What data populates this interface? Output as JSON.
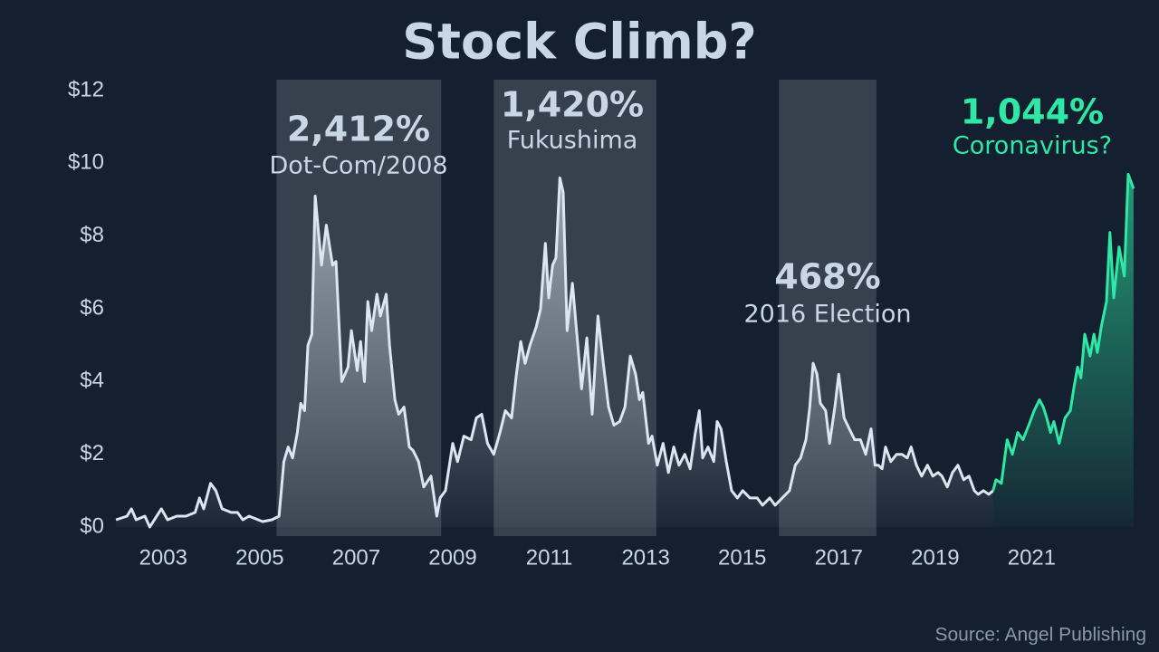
{
  "chart_data": {
    "type": "line",
    "title": "Stock Climb?",
    "source": "Source: Angel Publishing",
    "xlim": [
      2002,
      2023.15
    ],
    "ylim": [
      0,
      12
    ],
    "xticks": [
      2003,
      2005,
      2007,
      2009,
      2011,
      2013,
      2015,
      2017,
      2019,
      2021
    ],
    "yticks": [
      {
        "value": 0,
        "label": "$0"
      },
      {
        "value": 2,
        "label": "$2"
      },
      {
        "value": 4,
        "label": "$4"
      },
      {
        "value": 6,
        "label": "$6"
      },
      {
        "value": 8,
        "label": "$8"
      },
      {
        "value": 10,
        "label": "$10"
      },
      {
        "value": 12,
        "label": "$12"
      }
    ],
    "highlights": [
      {
        "start": 2005.35,
        "end": 2008.76
      },
      {
        "start": 2009.85,
        "end": 2013.22
      },
      {
        "start": 2015.76,
        "end": 2017.78
      }
    ],
    "annotations": [
      {
        "text": "2,412%",
        "subtext": "Dot-Com/2008",
        "color": "#c9d6e3"
      },
      {
        "text": "1,420%",
        "subtext": "Fukushima",
        "color": "#c9d6e3"
      },
      {
        "text": "468%",
        "subtext": "2016 Election",
        "color": "#c9d6e3"
      },
      {
        "text": "1,044%",
        "subtext": "Coronavirus?",
        "color": "#2ee8a5"
      }
    ],
    "x": [
      2002.02,
      2002.25,
      2002.34,
      2002.44,
      2002.62,
      2002.72,
      2002.96,
      2003.09,
      2003.28,
      2003.47,
      2003.66,
      2003.75,
      2003.84,
      2003.98,
      2004.09,
      2004.22,
      2004.41,
      2004.54,
      2004.65,
      2004.78,
      2005.06,
      2005.25,
      2005.4,
      2005.5,
      2005.59,
      2005.68,
      2005.78,
      2005.85,
      2005.93,
      2006.0,
      2006.08,
      2006.15,
      2006.28,
      2006.38,
      2006.51,
      2006.58,
      2006.7,
      2006.83,
      2006.9,
      2007.02,
      2007.09,
      2007.17,
      2007.24,
      2007.32,
      2007.43,
      2007.5,
      2007.62,
      2007.69,
      2007.8,
      2007.88,
      2007.99,
      2008.1,
      2008.18,
      2008.29,
      2008.4,
      2008.55,
      2008.67,
      2008.74,
      2008.85,
      2009.0,
      2009.1,
      2009.23,
      2009.38,
      2009.49,
      2009.6,
      2009.72,
      2009.85,
      2009.98,
      2010.09,
      2010.22,
      2010.32,
      2010.41,
      2010.5,
      2010.6,
      2010.73,
      2010.82,
      2010.92,
      2010.99,
      2011.07,
      2011.14,
      2011.22,
      2011.29,
      2011.37,
      2011.48,
      2011.56,
      2011.67,
      2011.78,
      2011.89,
      2012.01,
      2012.12,
      2012.23,
      2012.34,
      2012.46,
      2012.57,
      2012.68,
      2012.79,
      2012.87,
      2012.94,
      2013.06,
      2013.13,
      2013.24,
      2013.36,
      2013.47,
      2013.58,
      2013.69,
      2013.81,
      2013.92,
      2014.03,
      2014.11,
      2014.18,
      2014.29,
      2014.41,
      2014.48,
      2014.56,
      2014.67,
      2014.78,
      2014.9,
      2015.01,
      2015.16,
      2015.31,
      2015.42,
      2015.57,
      2015.68,
      2015.83,
      2015.98,
      2016.1,
      2016.21,
      2016.32,
      2016.4,
      2016.47,
      2016.55,
      2016.62,
      2016.73,
      2016.81,
      2016.92,
      2017.0,
      2017.11,
      2017.22,
      2017.33,
      2017.45,
      2017.56,
      2017.67,
      2017.75,
      2017.82,
      2017.9,
      2017.97,
      2018.08,
      2018.2,
      2018.31,
      2018.42,
      2018.5,
      2018.61,
      2018.72,
      2018.84,
      2018.95,
      2019.06,
      2019.14,
      2019.25,
      2019.36,
      2019.47,
      2019.59,
      2019.7,
      2019.81,
      2019.89,
      2020.0,
      2020.11,
      2020.2,
      2020.26,
      2020.37,
      2020.49,
      2020.6,
      2020.71,
      2020.82,
      2020.94,
      2021.05,
      2021.16,
      2021.24,
      2021.31,
      2021.39,
      2021.46,
      2021.57,
      2021.69,
      2021.8,
      2021.87,
      2021.95,
      2022.02,
      2022.1,
      2022.21,
      2022.29,
      2022.36,
      2022.44,
      2022.55,
      2022.62,
      2022.7,
      2022.81,
      2022.92,
      2023.0,
      2023.11
    ],
    "series": [
      {
        "color": "#dce6f0",
        "values": [
          0.2,
          0.3,
          0.5,
          0.2,
          0.3,
          0,
          0.5,
          0.2,
          0.3,
          0.3,
          0.4,
          0.8,
          0.5,
          1.2,
          1.0,
          0.5,
          0.4,
          0.4,
          0.2,
          0.3,
          0.15,
          0.2,
          0.3,
          1.8,
          2.2,
          1.9,
          2.6,
          3.4,
          3.2,
          5.0,
          5.3,
          9.1,
          7.2,
          8.3,
          7.2,
          7.3,
          4.0,
          4.4,
          5.4,
          4.3,
          5.1,
          4.0,
          6.2,
          5.4,
          6.4,
          5.8,
          6.4,
          5.0,
          3.5,
          3.1,
          3.3,
          2.2,
          2.1,
          1.8,
          1.1,
          1.4,
          0.3,
          0.8,
          1.0,
          2.3,
          1.8,
          2.5,
          2.4,
          3.0,
          3.1,
          2.3,
          2.0,
          2.6,
          3.2,
          3.0,
          4.2,
          5.1,
          4.5,
          5.0,
          5.5,
          6.0,
          7.8,
          6.3,
          7.2,
          7.4,
          9.6,
          9.2,
          5.4,
          6.7,
          5.5,
          3.8,
          5.2,
          3.1,
          5.8,
          4.5,
          3.3,
          2.8,
          2.9,
          3.3,
          4.7,
          4.2,
          3.5,
          3.7,
          2.3,
          2.5,
          1.7,
          2.3,
          1.5,
          2.2,
          1.7,
          2.0,
          1.6,
          2.6,
          3.2,
          1.9,
          2.2,
          1.8,
          2.9,
          2.7,
          1.8,
          1.0,
          0.8,
          1.0,
          0.8,
          0.8,
          0.6,
          0.8,
          0.6,
          0.8,
          1.0,
          1.7,
          1.9,
          2.4,
          3.3,
          4.5,
          4.2,
          3.4,
          3.2,
          2.3,
          3.3,
          4.2,
          3.0,
          2.7,
          2.4,
          2.4,
          2.0,
          2.7,
          1.7,
          1.7,
          1.6,
          2.2,
          1.8,
          2.0,
          2.0,
          1.9,
          2.2,
          1.7,
          1.4,
          1.7,
          1.4,
          1.5,
          1.4,
          1.1,
          1.5,
          1.7,
          1.3,
          1.4,
          1.0,
          0.9,
          1.0,
          0.9,
          1.0,
          null,
          null,
          null,
          null,
          null,
          null,
          null,
          null,
          null,
          null,
          null,
          null,
          null,
          null,
          null,
          null,
          null,
          null,
          null,
          null,
          null,
          null,
          null,
          null,
          null,
          null,
          null,
          null,
          null,
          null,
          null
        ]
      },
      {
        "color": "#2ee8a5",
        "values": [
          null,
          null,
          null,
          null,
          null,
          null,
          null,
          null,
          null,
          null,
          null,
          null,
          null,
          null,
          null,
          null,
          null,
          null,
          null,
          null,
          null,
          null,
          null,
          null,
          null,
          null,
          null,
          null,
          null,
          null,
          null,
          null,
          null,
          null,
          null,
          null,
          null,
          null,
          null,
          null,
          null,
          null,
          null,
          null,
          null,
          null,
          null,
          null,
          null,
          null,
          null,
          null,
          null,
          null,
          null,
          null,
          null,
          null,
          null,
          null,
          null,
          null,
          null,
          null,
          null,
          null,
          null,
          null,
          null,
          null,
          null,
          null,
          null,
          null,
          null,
          null,
          null,
          null,
          null,
          null,
          null,
          null,
          null,
          null,
          null,
          null,
          null,
          null,
          null,
          null,
          null,
          null,
          null,
          null,
          null,
          null,
          null,
          null,
          null,
          null,
          null,
          null,
          null,
          null,
          null,
          null,
          null,
          null,
          null,
          null,
          null,
          null,
          null,
          null,
          null,
          null,
          null,
          null,
          null,
          null,
          null,
          null,
          null,
          null,
          null,
          null,
          null,
          null,
          null,
          null,
          null,
          null,
          null,
          null,
          null,
          null,
          null,
          null,
          null,
          null,
          null,
          null,
          null,
          null,
          null,
          null,
          null,
          null,
          null,
          null,
          null,
          null,
          null,
          null,
          null,
          null,
          null,
          null,
          null,
          null,
          null,
          null,
          null,
          null,
          null,
          null,
          1.0,
          1.3,
          1.2,
          2.4,
          2.0,
          2.6,
          2.4,
          2.8,
          3.2,
          3.5,
          3.3,
          3.0,
          2.6,
          2.9,
          2.3,
          3.0,
          3.2,
          3.8,
          4.4,
          4.1,
          5.3,
          4.7,
          5.3,
          4.8,
          5.5,
          6.2,
          8.1,
          6.3,
          7.7,
          6.9,
          9.7,
          9.3
        ]
      }
    ]
  }
}
